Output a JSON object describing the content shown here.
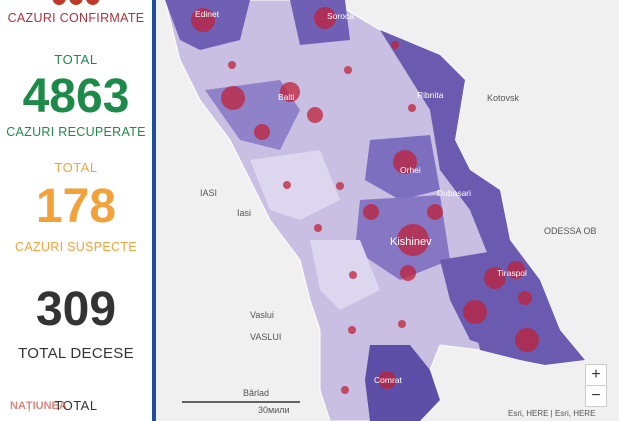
{
  "panel": {
    "stats": [
      {
        "label": "CAZURI CONFIRMATE"
      },
      {
        "total": "TOTAL",
        "value": "4863",
        "label": "CAZURI RECUPERATE"
      },
      {
        "total": "TOTAL",
        "value": "178",
        "label": "CAZURI SUSPECTE"
      },
      {
        "value": "309",
        "label": "TOTAL DECESE"
      },
      {
        "total": "TOTAL"
      }
    ],
    "watermark": "NAȚIUNEA"
  },
  "map": {
    "labels": [
      "Edinet",
      "Soroca",
      "Balti",
      "Ribnita",
      "Kotovsk",
      "Orhei",
      "IASI",
      "Iasi",
      "Dubasari",
      "Kishinev",
      "Tiraspol",
      "ODESSA OB",
      "Vaslui",
      "VASLUI",
      "Comrat",
      "Bârlad"
    ],
    "scale": "30мили",
    "attribution": "Esri, HERE | Esri, HERE",
    "zoom_in": "+",
    "zoom_out": "−"
  }
}
